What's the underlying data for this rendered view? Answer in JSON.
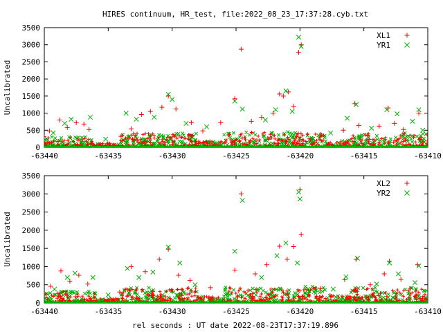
{
  "window": {
    "title": "HIRES continuum, HR_test, file:2022_08_23_17:37:28.cyb.txt",
    "xlabel": "rel seconds : UT date 2022-08-23T17:37:19.896"
  },
  "chart_data": [
    {
      "type": "scatter",
      "ylabel": "Uncalibrated",
      "xlim": [
        -63440,
        -63410
      ],
      "ylim": [
        0,
        3500
      ],
      "xticks": [
        -63440,
        -63435,
        -63430,
        -63425,
        -63420,
        -63415,
        -63410
      ],
      "yticks": [
        0,
        500,
        1000,
        1500,
        2000,
        2500,
        3000,
        3500
      ],
      "legend": "top-right",
      "grid": false,
      "series": [
        {
          "name": "XL1",
          "color": "#ff0000",
          "marker": "plus",
          "points": [
            [
              -63439.6,
              480
            ],
            [
              -63438.8,
              800
            ],
            [
              -63438.2,
              580
            ],
            [
              -63437.5,
              720
            ],
            [
              -63436.9,
              680
            ],
            [
              -63436.5,
              520
            ],
            [
              -63434.0,
              320
            ],
            [
              -63433.2,
              540
            ],
            [
              -63432.4,
              960
            ],
            [
              -63431.7,
              1050
            ],
            [
              -63430.8,
              1170
            ],
            [
              -63430.3,
              1500
            ],
            [
              -63429.7,
              1120
            ],
            [
              -63428.5,
              720
            ],
            [
              -63427.6,
              480
            ],
            [
              -63426.2,
              720
            ],
            [
              -63425.1,
              1420
            ],
            [
              -63424.6,
              2870
            ],
            [
              -63423.8,
              760
            ],
            [
              -63423.0,
              880
            ],
            [
              -63422.1,
              1000
            ],
            [
              -63421.6,
              1560
            ],
            [
              -63421.3,
              1500
            ],
            [
              -63420.9,
              1620
            ],
            [
              -63420.5,
              1200
            ],
            [
              -63420.1,
              2780
            ],
            [
              -63419.9,
              3000
            ],
            [
              -63418.3,
              360
            ],
            [
              -63416.6,
              500
            ],
            [
              -63415.7,
              1280
            ],
            [
              -63415.4,
              640
            ],
            [
              -63414.7,
              360
            ],
            [
              -63413.8,
              620
            ],
            [
              -63413.1,
              1150
            ],
            [
              -63412.6,
              700
            ],
            [
              -63411.9,
              520
            ],
            [
              -63410.7,
              1000
            ]
          ]
        },
        {
          "name": "YR1",
          "color": "#00b000",
          "marker": "cross",
          "points": [
            [
              -63439.3,
              420
            ],
            [
              -63438.4,
              700
            ],
            [
              -63437.9,
              820
            ],
            [
              -63436.4,
              880
            ],
            [
              -63435.2,
              240
            ],
            [
              -63433.6,
              1000
            ],
            [
              -63432.8,
              820
            ],
            [
              -63431.4,
              880
            ],
            [
              -63430.3,
              1550
            ],
            [
              -63430.0,
              1400
            ],
            [
              -63428.9,
              700
            ],
            [
              -63427.3,
              600
            ],
            [
              -63425.1,
              1350
            ],
            [
              -63424.5,
              1120
            ],
            [
              -63422.7,
              800
            ],
            [
              -63421.9,
              1100
            ],
            [
              -63421.1,
              1650
            ],
            [
              -63420.6,
              1050
            ],
            [
              -63420.1,
              3220
            ],
            [
              -63419.9,
              2950
            ],
            [
              -63417.6,
              420
            ],
            [
              -63416.3,
              850
            ],
            [
              -63415.6,
              1250
            ],
            [
              -63414.4,
              560
            ],
            [
              -63413.2,
              1100
            ],
            [
              -63412.4,
              980
            ],
            [
              -63411.2,
              760
            ],
            [
              -63410.7,
              1100
            ],
            [
              -63410.4,
              500
            ]
          ]
        }
      ]
    },
    {
      "type": "scatter",
      "ylabel": "Uncalibrated",
      "xlim": [
        -63440,
        -63410
      ],
      "ylim": [
        0,
        3500
      ],
      "xticks": [
        -63440,
        -63435,
        -63430,
        -63425,
        -63420,
        -63415,
        -63410
      ],
      "yticks": [
        0,
        500,
        1000,
        1500,
        2000,
        2500,
        3000,
        3500
      ],
      "legend": "top-right",
      "grid": false,
      "series": [
        {
          "name": "XL2",
          "color": "#ff0000",
          "marker": "plus",
          "points": [
            [
              -63439.5,
              460
            ],
            [
              -63438.7,
              880
            ],
            [
              -63438.0,
              600
            ],
            [
              -63437.3,
              760
            ],
            [
              -63436.6,
              520
            ],
            [
              -63434.1,
              300
            ],
            [
              -63433.2,
              1000
            ],
            [
              -63432.1,
              860
            ],
            [
              -63431.0,
              1200
            ],
            [
              -63430.3,
              1480
            ],
            [
              -63429.5,
              760
            ],
            [
              -63428.6,
              620
            ],
            [
              -63427.0,
              420
            ],
            [
              -63425.1,
              900
            ],
            [
              -63424.6,
              3000
            ],
            [
              -63423.5,
              800
            ],
            [
              -63422.6,
              1050
            ],
            [
              -63421.6,
              1560
            ],
            [
              -63421.0,
              1200
            ],
            [
              -63420.5,
              1550
            ],
            [
              -63420.0,
              3120
            ],
            [
              -63419.9,
              1880
            ],
            [
              -63418.4,
              400
            ],
            [
              -63416.5,
              640
            ],
            [
              -63415.6,
              1200
            ],
            [
              -63414.5,
              500
            ],
            [
              -63413.4,
              800
            ],
            [
              -63413.0,
              1150
            ],
            [
              -63412.1,
              650
            ],
            [
              -63410.8,
              1050
            ]
          ]
        },
        {
          "name": "YR2",
          "color": "#00b000",
          "marker": "cross",
          "points": [
            [
              -63439.2,
              380
            ],
            [
              -63438.2,
              700
            ],
            [
              -63437.6,
              820
            ],
            [
              -63436.2,
              700
            ],
            [
              -63435.0,
              220
            ],
            [
              -63433.5,
              950
            ],
            [
              -63432.6,
              700
            ],
            [
              -63431.5,
              850
            ],
            [
              -63430.3,
              1540
            ],
            [
              -63429.4,
              1100
            ],
            [
              -63428.2,
              500
            ],
            [
              -63425.1,
              1420
            ],
            [
              -63424.5,
              2820
            ],
            [
              -63423.0,
              700
            ],
            [
              -63421.8,
              1300
            ],
            [
              -63421.1,
              1650
            ],
            [
              -63420.2,
              1100
            ],
            [
              -63420.0,
              2860
            ],
            [
              -63420.1,
              3050
            ],
            [
              -63417.4,
              380
            ],
            [
              -63416.4,
              720
            ],
            [
              -63415.5,
              1230
            ],
            [
              -63414.0,
              520
            ],
            [
              -63413.0,
              1100
            ],
            [
              -63412.3,
              800
            ],
            [
              -63411.0,
              560
            ],
            [
              -63410.7,
              1020
            ]
          ]
        }
      ]
    }
  ]
}
